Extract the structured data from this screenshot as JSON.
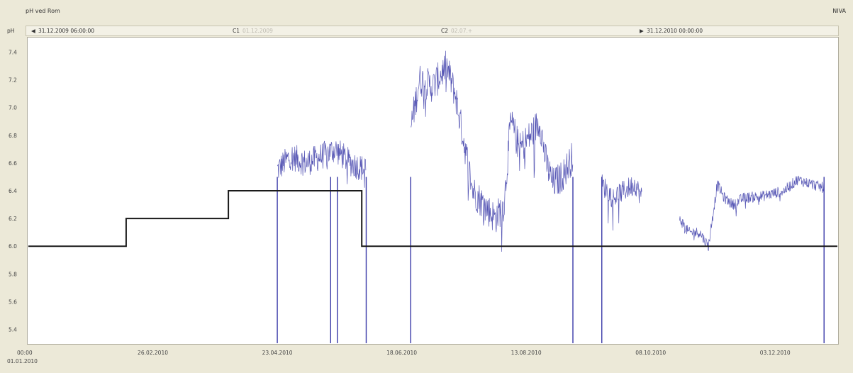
{
  "window": {
    "title": "pH ved Rom",
    "source": "NIVA"
  },
  "nav": {
    "param": "pH",
    "start_label": "31.12.2009 06:00:00",
    "start_icon": "step-left-icon",
    "c1_label": "C1",
    "c1_value": "01.12.2009",
    "c2_label": "C2",
    "c2_value": "02.07.+",
    "end_label": "31.12.2010 00:00:00",
    "end_icon": "step-right-icon"
  },
  "chart_data": {
    "type": "line",
    "xlabel": "",
    "ylabel": "",
    "ylim": [
      5.3,
      7.5
    ],
    "xlim": [
      0,
      364
    ],
    "grid": false,
    "y_ticks": [
      "5.4",
      "5.6",
      "5.8",
      "6.0",
      "6.2",
      "6.4",
      "6.6",
      "6.8",
      "7.0",
      "7.2",
      "7.4"
    ],
    "x_ticks": [
      {
        "label": "00:00",
        "sub": "01.01.2010",
        "day": 0
      },
      {
        "label": "26.02.2010",
        "day": 56
      },
      {
        "label": "23.04.2010",
        "day": 112
      },
      {
        "label": "18.06.2010",
        "day": 168
      },
      {
        "label": "13.08.2010",
        "day": 224
      },
      {
        "label": "08.10.2010",
        "day": 280
      },
      {
        "label": "03.12.2010",
        "day": 336
      }
    ],
    "colors": {
      "measured": "#3a3aa8",
      "limit": "#1a1a1a"
    },
    "series": [
      {
        "kind": "step",
        "points": [
          [
            0,
            6.0
          ],
          [
            44,
            6.0
          ],
          [
            44,
            6.2
          ],
          [
            90,
            6.2
          ],
          [
            90,
            6.4
          ],
          [
            150,
            6.4
          ],
          [
            150,
            6.0
          ],
          [
            364,
            6.0
          ]
        ]
      },
      {
        "kind": "noisy",
        "segments": [
          {
            "points": [
              [
                112,
                6.55
              ],
              [
                118,
                6.65
              ],
              [
                125,
                6.6
              ],
              [
                132,
                6.65
              ],
              [
                138,
                6.7
              ],
              [
                145,
                6.6
              ],
              [
                152,
                6.55
              ]
            ],
            "noise": 0.1
          },
          {
            "points": [
              [
                172,
                6.85
              ],
              [
                176,
                7.2
              ],
              [
                182,
                7.15
              ],
              [
                188,
                7.3
              ],
              [
                192,
                7.1
              ],
              [
                196,
                6.75
              ],
              [
                200,
                6.4
              ],
              [
                205,
                6.3
              ],
              [
                210,
                6.2
              ],
              [
                214,
                6.3
              ],
              [
                217,
                6.9
              ],
              [
                221,
                6.7
              ],
              [
                226,
                6.8
              ],
              [
                230,
                6.9
              ],
              [
                233,
                6.6
              ],
              [
                236,
                6.45
              ],
              [
                240,
                6.5
              ],
              [
                245,
                6.65
              ]
            ],
            "noise": 0.12
          },
          {
            "points": [
              [
                258,
                6.45
              ],
              [
                263,
                6.35
              ],
              [
                268,
                6.4
              ],
              [
                273,
                6.45
              ],
              [
                276,
                6.35
              ]
            ],
            "noise": 0.08
          },
          {
            "points": [
              [
                293,
                6.2
              ],
              [
                297,
                6.1
              ],
              [
                302,
                6.1
              ],
              [
                306,
                6.0
              ],
              [
                310,
                6.45
              ],
              [
                313,
                6.35
              ],
              [
                317,
                6.3
              ],
              [
                322,
                6.35
              ],
              [
                330,
                6.36
              ],
              [
                340,
                6.4
              ],
              [
                346,
                6.48
              ],
              [
                352,
                6.45
              ],
              [
                358,
                6.42
              ]
            ],
            "noise": 0.04
          }
        ],
        "drops": [
          {
            "day": 112,
            "to": 5.3
          },
          {
            "day": 136,
            "to": 5.3
          },
          {
            "day": 139,
            "to": 5.3
          },
          {
            "day": 152,
            "to": 5.3
          },
          {
            "day": 172,
            "to": 5.3
          },
          {
            "day": 245,
            "to": 5.3
          },
          {
            "day": 258,
            "to": 5.3
          },
          {
            "day": 358,
            "to": 5.3
          }
        ]
      }
    ]
  }
}
